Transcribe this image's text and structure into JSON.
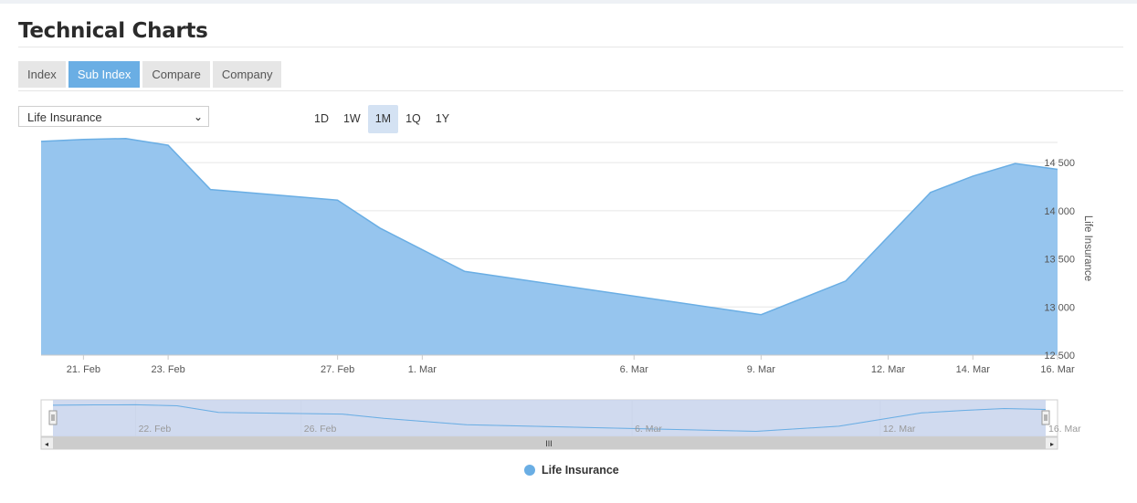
{
  "page": {
    "title": "Technical Charts"
  },
  "tabs": [
    {
      "label": "Index",
      "active": false
    },
    {
      "label": "Sub Index",
      "active": true
    },
    {
      "label": "Compare",
      "active": false
    },
    {
      "label": "Company",
      "active": false
    }
  ],
  "selector": {
    "value": "Life Insurance"
  },
  "ranges": [
    {
      "label": "1D",
      "active": false
    },
    {
      "label": "1W",
      "active": false
    },
    {
      "label": "1M",
      "active": true
    },
    {
      "label": "1Q",
      "active": false
    },
    {
      "label": "1Y",
      "active": false
    }
  ],
  "navigator": {
    "tick_labels": [
      "22. Feb",
      "26. Feb",
      "6. Mar",
      "12. Mar",
      "16. Mar"
    ],
    "scroll_grip": "III"
  },
  "colors": {
    "series": "#6aaee4",
    "area_fill": "#96c5ee",
    "navigator_mask": "#d5dcee",
    "active_tab": "#6aaee4"
  },
  "chart_data": {
    "type": "area",
    "title": "",
    "ylabel": "Life Insurance",
    "ylim": [
      12500,
      14700
    ],
    "yticks": [
      12500,
      13000,
      13500,
      14000,
      14500
    ],
    "ytick_labels": [
      "12 500",
      "13 000",
      "13 500",
      "14 000",
      "14 500"
    ],
    "xticks": [
      {
        "date": "2022-02-21",
        "label": "21. Feb"
      },
      {
        "date": "2022-02-23",
        "label": "23. Feb"
      },
      {
        "date": "2022-02-27",
        "label": "27. Feb"
      },
      {
        "date": "2022-03-01",
        "label": "1. Mar"
      },
      {
        "date": "2022-03-06",
        "label": "6. Mar"
      },
      {
        "date": "2022-03-09",
        "label": "9. Mar"
      },
      {
        "date": "2022-03-12",
        "label": "12. Mar"
      },
      {
        "date": "2022-03-14",
        "label": "14. Mar"
      },
      {
        "date": "2022-03-16",
        "label": "16. Mar"
      }
    ],
    "series": [
      {
        "name": "Life Insurance",
        "points": [
          {
            "x": "2022-02-20",
            "y": 14720
          },
          {
            "x": "2022-02-21",
            "y": 14740
          },
          {
            "x": "2022-02-22",
            "y": 14750
          },
          {
            "x": "2022-02-23",
            "y": 14680
          },
          {
            "x": "2022-02-24",
            "y": 14220
          },
          {
            "x": "2022-02-27",
            "y": 14110
          },
          {
            "x": "2022-02-28",
            "y": 13820
          },
          {
            "x": "2022-03-02",
            "y": 13370
          },
          {
            "x": "2022-03-09",
            "y": 12920
          },
          {
            "x": "2022-03-11",
            "y": 13270
          },
          {
            "x": "2022-03-13",
            "y": 14190
          },
          {
            "x": "2022-03-14",
            "y": 14360
          },
          {
            "x": "2022-03-15",
            "y": 14490
          },
          {
            "x": "2022-03-16",
            "y": 14430
          }
        ]
      }
    ],
    "legend": "bottom-center"
  }
}
